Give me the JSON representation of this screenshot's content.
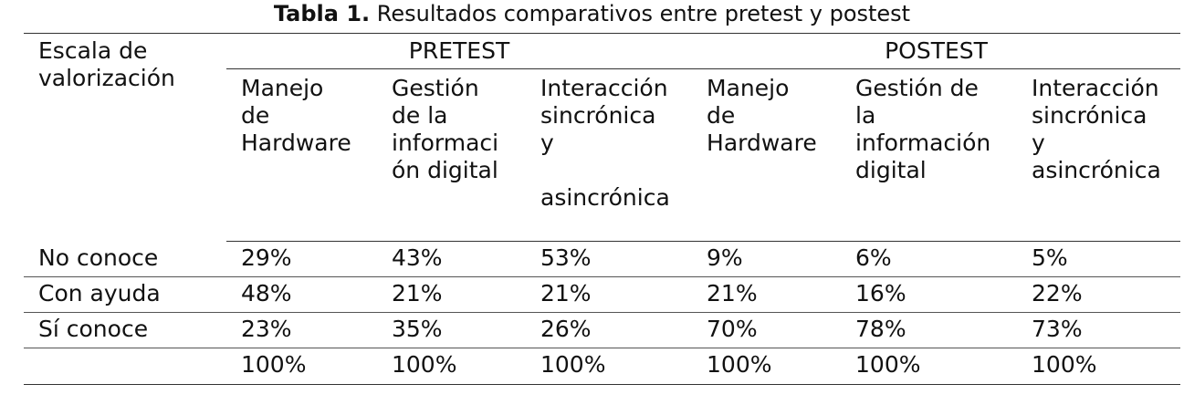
{
  "caption": {
    "label": "Tabla 1.",
    "text": " Resultados comparativos entre pretest y postest"
  },
  "table": {
    "scale_header": "Escala de\nvalorización",
    "groups": [
      "PRETEST",
      "POSTEST"
    ],
    "subheaders": [
      "Manejo\nde\nHardware",
      "Gestión\nde la\ninformaci\nón digital",
      "Interacción\nsincrónica\ny\n\nasincrónica",
      "Manejo\nde\nHardware",
      "Gestión de\nla\ninformación\ndigital",
      "Interacción\nsincrónica\ny\nasincrónica"
    ],
    "rows": [
      {
        "label": "No conoce",
        "values": [
          "29%",
          "43%",
          "53%",
          "9%",
          "6%",
          "5%"
        ]
      },
      {
        "label": "Con ayuda",
        "values": [
          "48%",
          "21%",
          "21%",
          "21%",
          "16%",
          "22%"
        ]
      },
      {
        "label": "Sí conoce",
        "values": [
          "23%",
          "35%",
          "26%",
          "70%",
          "78%",
          "73%"
        ]
      },
      {
        "label": "",
        "values": [
          "100%",
          "100%",
          "100%",
          "100%",
          "100%",
          "100%"
        ]
      }
    ]
  }
}
